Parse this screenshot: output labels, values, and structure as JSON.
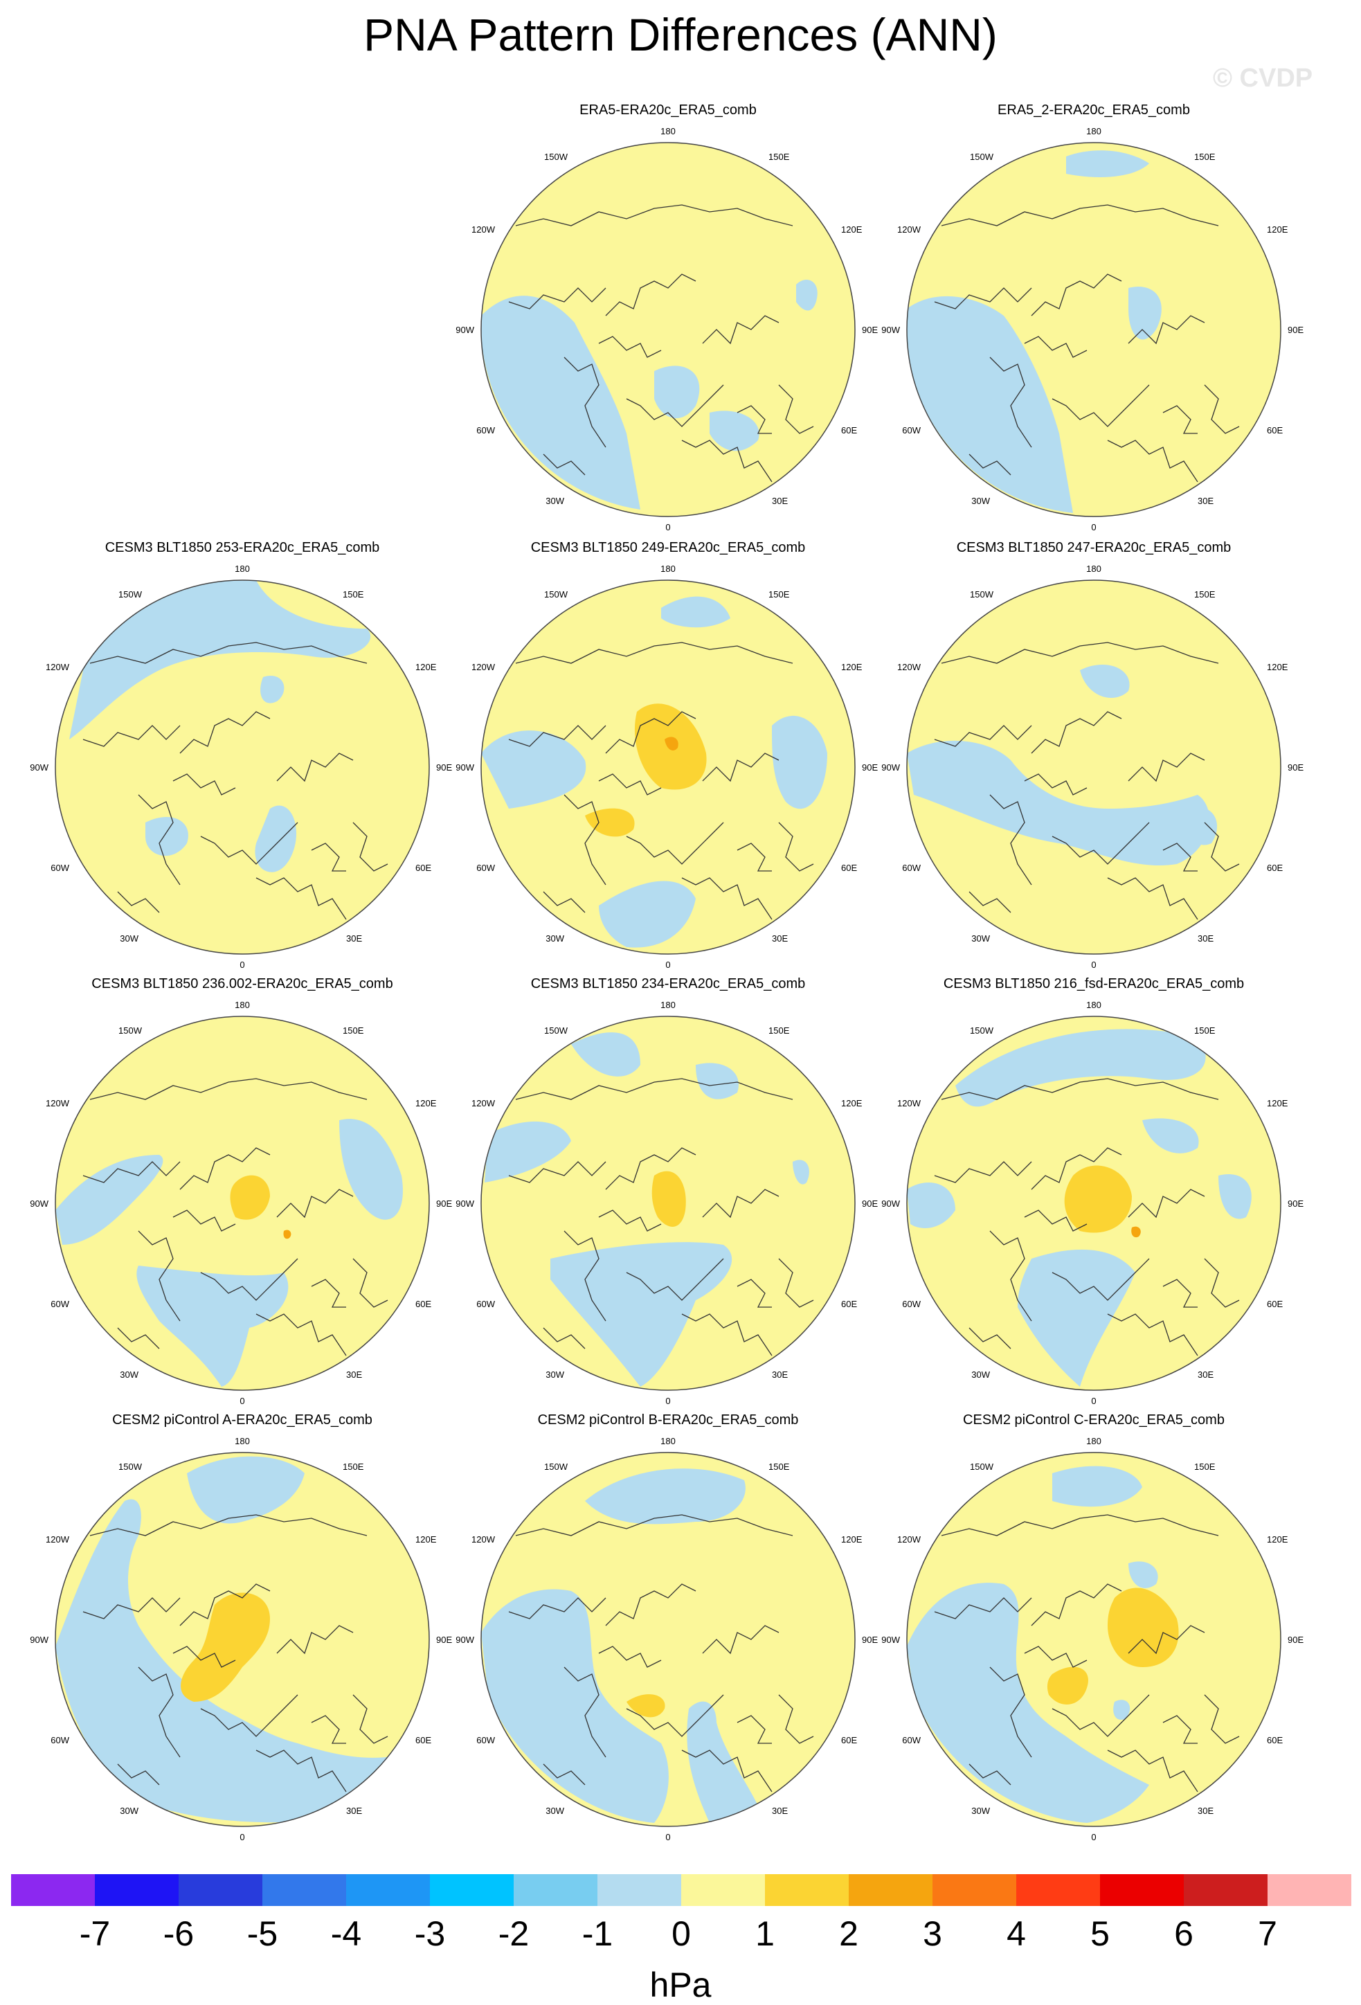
{
  "title": "PNA Pattern Differences (ANN)",
  "watermark": "© CVDP",
  "units": "hPa",
  "colors": {
    "light_blue": "#b4dcf0",
    "light_yellow": "#fbf79a",
    "gold": "#fbd433",
    "orange": "#f5a50f",
    "coast": "#333333",
    "outline": "#444444"
  },
  "map_labels": {
    "top": "180",
    "top_left": "150W",
    "top_right": "150E",
    "upper_left": "120W",
    "upper_right": "120E",
    "left": "90W",
    "right": "90E",
    "lower_left": "60W",
    "lower_right": "60E",
    "bottom_left": "30W",
    "bottom_right": "30E",
    "bottom": "0"
  },
  "panels": [
    {
      "title": ""
    },
    {
      "title": "ERA5-ERA20c_ERA5_comb"
    },
    {
      "title": "ERA5_2-ERA20c_ERA5_comb"
    },
    {
      "title": "CESM3 BLT1850 253-ERA20c_ERA5_comb"
    },
    {
      "title": "CESM3 BLT1850 249-ERA20c_ERA5_comb"
    },
    {
      "title": "CESM3 BLT1850 247-ERA20c_ERA5_comb"
    },
    {
      "title": "CESM3 BLT1850 236.002-ERA20c_ERA5_comb"
    },
    {
      "title": "CESM3 BLT1850 234-ERA20c_ERA5_comb"
    },
    {
      "title": "CESM3 BLT1850 216_fsd-ERA20c_ERA5_comb"
    },
    {
      "title": "CESM2 piControl A-ERA20c_ERA5_comb"
    },
    {
      "title": "CESM2 piControl B-ERA20c_ERA5_comb"
    },
    {
      "title": "CESM2 piControl C-ERA20c_ERA5_comb"
    }
  ],
  "colorbar": {
    "labels": [
      "-7",
      "-6",
      "-5",
      "-4",
      "-3",
      "-2",
      "-1",
      "0",
      "1",
      "2",
      "3",
      "4",
      "5",
      "6",
      "7"
    ],
    "colors": [
      "#8c28f0",
      "#1e14f5",
      "#283cdc",
      "#3278eb",
      "#1e96f5",
      "#00c3ff",
      "#78cdf0",
      "#b4dcf0",
      "#fbf79a",
      "#fbd433",
      "#f5a50f",
      "#fa7814",
      "#ff3c14",
      "#eb0000",
      "#cd1e1e",
      "#ffb4b4"
    ]
  }
}
